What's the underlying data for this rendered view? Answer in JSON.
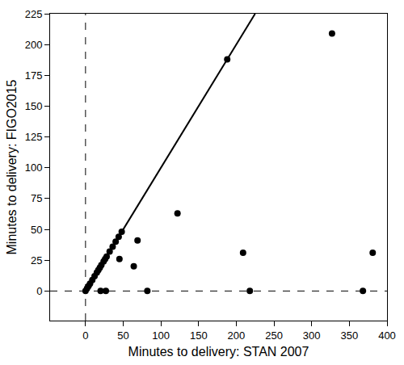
{
  "chart_data": {
    "type": "scatter",
    "x_label": "Minutes to delivery: STAN 2007",
    "y_label": "Minutes to delivery: FIGO2015",
    "xlim": [
      -47,
      400
    ],
    "ylim": [
      -24,
      225
    ],
    "xticks": [
      0,
      50,
      100,
      150,
      200,
      250,
      300,
      350,
      400
    ],
    "yticks": [
      0,
      25,
      50,
      75,
      100,
      125,
      150,
      175,
      200,
      225
    ],
    "grid": false,
    "series": [
      {
        "type": "line",
        "line_style": "dashed",
        "color": "#000000",
        "x": [
          0,
          0
        ],
        "values": [
          -24,
          225
        ]
      },
      {
        "type": "line",
        "line_style": "dashed",
        "color": "#000000",
        "x": [
          -47,
          400
        ],
        "values": [
          0,
          0
        ]
      },
      {
        "type": "line",
        "line_style": "solid",
        "color": "#000000",
        "x": [
          0,
          225
        ],
        "values": [
          0,
          225
        ]
      },
      {
        "type": "scatter",
        "marker": "circle",
        "color": "#000000",
        "x": [
          0,
          2,
          4,
          6,
          9,
          12,
          15,
          17,
          19,
          21,
          24,
          26,
          28,
          32,
          36,
          40,
          44,
          48,
          188,
          45,
          64,
          69,
          122,
          82,
          20,
          27,
          209,
          218,
          327,
          368,
          381
        ],
        "values": [
          0,
          2,
          4,
          6,
          9,
          12,
          15,
          17,
          19,
          21,
          24,
          26,
          28,
          32,
          36,
          40,
          44,
          48,
          188,
          26,
          20,
          41,
          63,
          0,
          0,
          0,
          31,
          0,
          209,
          0,
          31
        ]
      }
    ]
  }
}
